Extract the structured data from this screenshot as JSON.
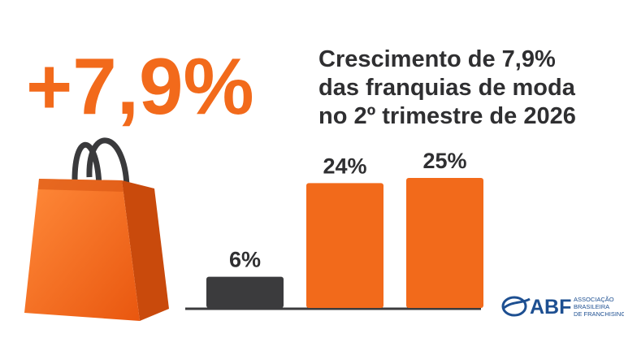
{
  "chart_data": {
    "type": "bar",
    "headline": "+7,9%",
    "title_lines": [
      "Crescimento de 7,9%",
      "das franquias de moda",
      "no 2º trimestre de 2026"
    ],
    "categories": [
      null,
      null,
      null
    ],
    "values": [
      6,
      24,
      25
    ],
    "value_labels": [
      "6%",
      "24%",
      "25%"
    ],
    "colors": [
      "#3b3b3d",
      "#f26a1b",
      "#f26a1b"
    ]
  },
  "logo": {
    "name": "ABF",
    "lines": [
      "ASSOCIAÇÃO",
      "BRASILEIRA",
      "DE FRANCHISING"
    ]
  }
}
